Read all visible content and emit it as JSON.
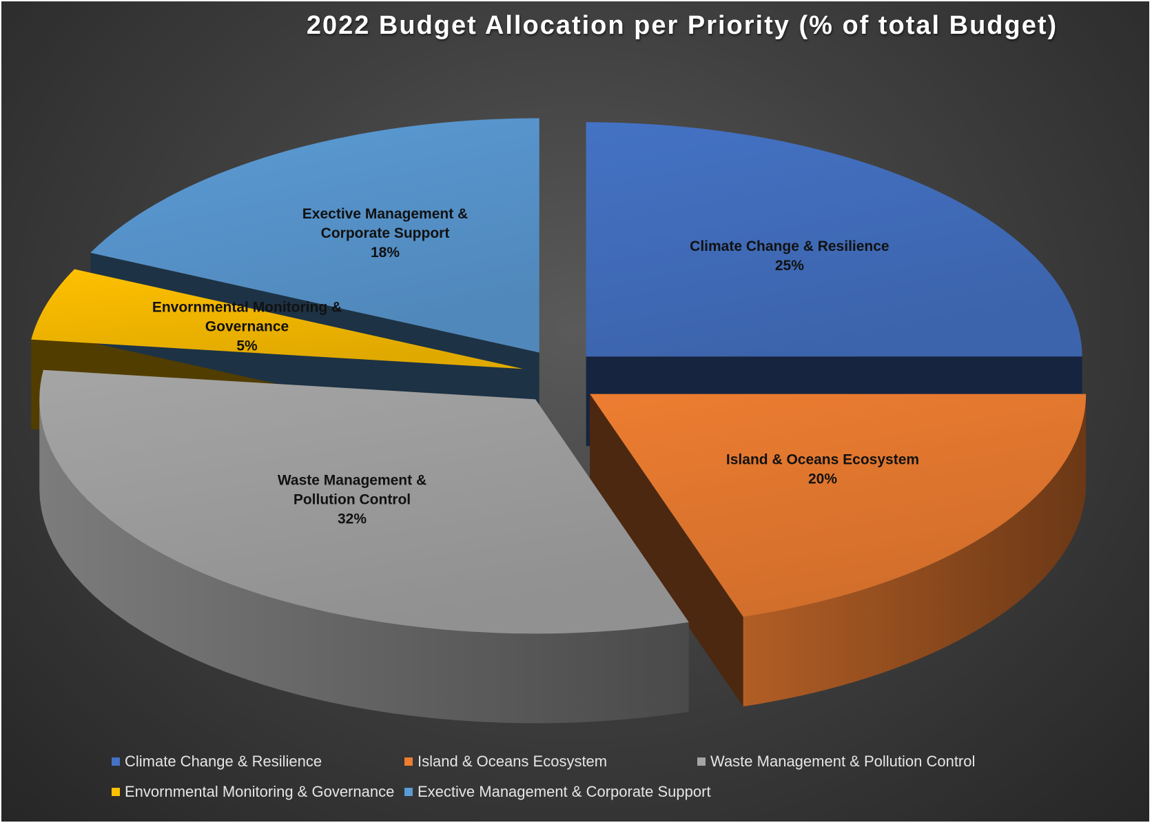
{
  "chart_data": {
    "type": "pie",
    "title": "2022 Budget Allocation per Priority (% of total Budget)",
    "slices": [
      {
        "label_lines": [
          "Climate Change & Resilience"
        ],
        "legend": "Climate Change & Resilience",
        "value": 25,
        "value_label": "25%",
        "color": "#4472c4"
      },
      {
        "label_lines": [
          "Island & Oceans Ecosystem"
        ],
        "legend": "Island & Oceans Ecosystem",
        "value": 20,
        "value_label": "20%",
        "color": "#ed7d31"
      },
      {
        "label_lines": [
          "Waste Management &",
          "Pollution Control"
        ],
        "legend": "Waste Management & Pollution Control",
        "value": 32,
        "value_label": "32%",
        "color": "#a5a5a5"
      },
      {
        "label_lines": [
          "Envornmental Monitoring &",
          "Governance"
        ],
        "legend": "Envornmental Monitoring & Governance",
        "value": 5,
        "value_label": "5%",
        "color": "#ffc000"
      },
      {
        "label_lines": [
          "Exective Management &",
          "Corporate Support"
        ],
        "legend": "Exective Management & Corporate Support",
        "value": 18,
        "value_label": "18%",
        "color": "#5b9bd5"
      }
    ],
    "legend_position": "bottom",
    "style": "3d-exploded"
  }
}
